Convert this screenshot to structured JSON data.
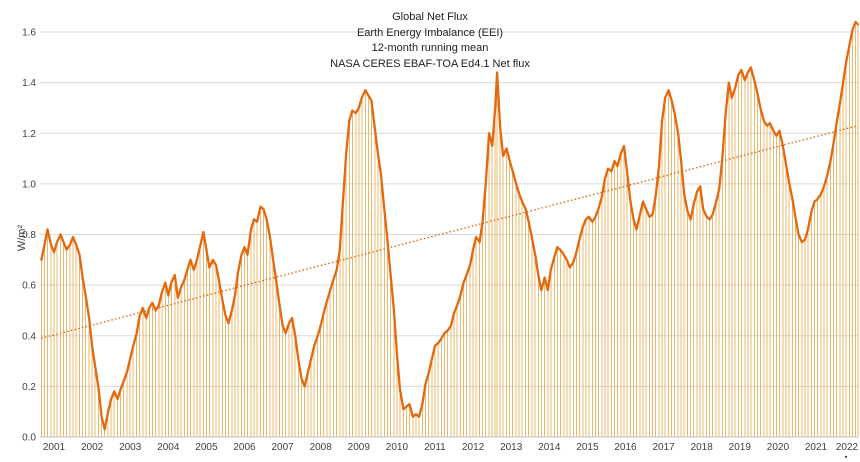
{
  "chart": {
    "title_lines": [
      "Global Net Flux",
      "Earth Energy Imbalance (EEI)",
      "12-month running mean",
      "NASA CERES EBAF-TOA Ed4.1 Net flux"
    ],
    "y_axis": {
      "title": "W/m²",
      "tick_labels": [
        "0.0",
        "0.2",
        "0.4",
        "0.6",
        "0.8",
        "1.0",
        "1.2",
        "1.4",
        "1.6"
      ]
    },
    "x_axis": {
      "tick_labels": [
        "2001",
        "2002",
        "2003",
        "2004",
        "2005",
        "2006",
        "2007",
        "2008",
        "2009",
        "2010",
        "2011",
        "2012",
        "2013",
        "2014",
        "2015",
        "2016",
        "2017",
        "2018",
        "2019",
        "2020",
        "2021",
        "2022"
      ],
      "end_marker": "▪"
    },
    "colors": {
      "line": "#E2690F",
      "drop_lines": "#E7AC55",
      "trend_line": "#DC6B12",
      "gridline": "#D9D9D9",
      "axis_line": "#BFBFBF",
      "tick_text": "#3f3f3f",
      "title_text": "#1f1f1f",
      "marker": "#1a1a1a"
    }
  },
  "chart_data": {
    "type": "line",
    "title": "Global Net Flux — Earth Energy Imbalance (EEI), 12-month running mean, NASA CERES EBAF-TOA Ed4.1 Net flux",
    "xlabel": "",
    "ylabel": "W/m²",
    "ylim": [
      0,
      1.6
    ],
    "ytick_step": 0.2,
    "xlim": [
      2000.55,
      2022.25
    ],
    "grid": "horizontal",
    "legend": "none",
    "series_name": "12-month running mean net flux (W/m²)",
    "points": [
      [
        2000.67,
        0.7
      ],
      [
        2000.75,
        0.76
      ],
      [
        2000.83,
        0.82
      ],
      [
        2000.92,
        0.76
      ],
      [
        2001.0,
        0.73
      ],
      [
        2001.08,
        0.77
      ],
      [
        2001.17,
        0.8
      ],
      [
        2001.25,
        0.77
      ],
      [
        2001.33,
        0.74
      ],
      [
        2001.42,
        0.76
      ],
      [
        2001.5,
        0.79
      ],
      [
        2001.58,
        0.76
      ],
      [
        2001.67,
        0.72
      ],
      [
        2001.75,
        0.63
      ],
      [
        2001.83,
        0.56
      ],
      [
        2001.92,
        0.47
      ],
      [
        2002.0,
        0.36
      ],
      [
        2002.08,
        0.28
      ],
      [
        2002.17,
        0.19
      ],
      [
        2002.25,
        0.08
      ],
      [
        2002.33,
        0.03
      ],
      [
        2002.42,
        0.1
      ],
      [
        2002.5,
        0.15
      ],
      [
        2002.58,
        0.18
      ],
      [
        2002.67,
        0.15
      ],
      [
        2002.75,
        0.19
      ],
      [
        2002.83,
        0.22
      ],
      [
        2002.92,
        0.26
      ],
      [
        2003.0,
        0.31
      ],
      [
        2003.08,
        0.36
      ],
      [
        2003.17,
        0.41
      ],
      [
        2003.25,
        0.48
      ],
      [
        2003.33,
        0.51
      ],
      [
        2003.42,
        0.47
      ],
      [
        2003.5,
        0.51
      ],
      [
        2003.58,
        0.53
      ],
      [
        2003.67,
        0.5
      ],
      [
        2003.75,
        0.52
      ],
      [
        2003.83,
        0.57
      ],
      [
        2003.92,
        0.61
      ],
      [
        2004.0,
        0.56
      ],
      [
        2004.08,
        0.61
      ],
      [
        2004.17,
        0.64
      ],
      [
        2004.25,
        0.55
      ],
      [
        2004.33,
        0.59
      ],
      [
        2004.42,
        0.62
      ],
      [
        2004.5,
        0.66
      ],
      [
        2004.58,
        0.7
      ],
      [
        2004.67,
        0.66
      ],
      [
        2004.75,
        0.7
      ],
      [
        2004.83,
        0.75
      ],
      [
        2004.92,
        0.81
      ],
      [
        2005.0,
        0.74
      ],
      [
        2005.08,
        0.67
      ],
      [
        2005.17,
        0.7
      ],
      [
        2005.25,
        0.68
      ],
      [
        2005.33,
        0.62
      ],
      [
        2005.42,
        0.54
      ],
      [
        2005.5,
        0.48
      ],
      [
        2005.58,
        0.45
      ],
      [
        2005.67,
        0.5
      ],
      [
        2005.75,
        0.56
      ],
      [
        2005.83,
        0.65
      ],
      [
        2005.92,
        0.72
      ],
      [
        2006.0,
        0.75
      ],
      [
        2006.08,
        0.72
      ],
      [
        2006.17,
        0.82
      ],
      [
        2006.25,
        0.86
      ],
      [
        2006.33,
        0.85
      ],
      [
        2006.42,
        0.91
      ],
      [
        2006.5,
        0.9
      ],
      [
        2006.58,
        0.86
      ],
      [
        2006.67,
        0.79
      ],
      [
        2006.75,
        0.7
      ],
      [
        2006.83,
        0.62
      ],
      [
        2006.92,
        0.52
      ],
      [
        2007.0,
        0.44
      ],
      [
        2007.08,
        0.41
      ],
      [
        2007.17,
        0.45
      ],
      [
        2007.25,
        0.47
      ],
      [
        2007.33,
        0.4
      ],
      [
        2007.42,
        0.3
      ],
      [
        2007.5,
        0.23
      ],
      [
        2007.58,
        0.2
      ],
      [
        2007.67,
        0.26
      ],
      [
        2007.75,
        0.31
      ],
      [
        2007.83,
        0.36
      ],
      [
        2007.92,
        0.4
      ],
      [
        2008.0,
        0.44
      ],
      [
        2008.08,
        0.49
      ],
      [
        2008.17,
        0.54
      ],
      [
        2008.25,
        0.58
      ],
      [
        2008.33,
        0.62
      ],
      [
        2008.42,
        0.66
      ],
      [
        2008.5,
        0.74
      ],
      [
        2008.58,
        0.92
      ],
      [
        2008.67,
        1.12
      ],
      [
        2008.75,
        1.25
      ],
      [
        2008.83,
        1.29
      ],
      [
        2008.92,
        1.28
      ],
      [
        2009.0,
        1.3
      ],
      [
        2009.08,
        1.34
      ],
      [
        2009.17,
        1.37
      ],
      [
        2009.25,
        1.35
      ],
      [
        2009.33,
        1.33
      ],
      [
        2009.42,
        1.22
      ],
      [
        2009.5,
        1.12
      ],
      [
        2009.58,
        1.04
      ],
      [
        2009.67,
        0.9
      ],
      [
        2009.75,
        0.78
      ],
      [
        2009.83,
        0.65
      ],
      [
        2009.92,
        0.5
      ],
      [
        2010.0,
        0.33
      ],
      [
        2010.08,
        0.19
      ],
      [
        2010.17,
        0.11
      ],
      [
        2010.25,
        0.12
      ],
      [
        2010.33,
        0.13
      ],
      [
        2010.42,
        0.08
      ],
      [
        2010.5,
        0.09
      ],
      [
        2010.58,
        0.08
      ],
      [
        2010.67,
        0.13
      ],
      [
        2010.75,
        0.21
      ],
      [
        2010.83,
        0.25
      ],
      [
        2010.92,
        0.31
      ],
      [
        2011.0,
        0.36
      ],
      [
        2011.08,
        0.37
      ],
      [
        2011.17,
        0.39
      ],
      [
        2011.25,
        0.41
      ],
      [
        2011.33,
        0.42
      ],
      [
        2011.42,
        0.44
      ],
      [
        2011.5,
        0.49
      ],
      [
        2011.58,
        0.52
      ],
      [
        2011.67,
        0.56
      ],
      [
        2011.75,
        0.61
      ],
      [
        2011.83,
        0.64
      ],
      [
        2011.92,
        0.68
      ],
      [
        2012.0,
        0.74
      ],
      [
        2012.08,
        0.79
      ],
      [
        2012.17,
        0.77
      ],
      [
        2012.25,
        0.85
      ],
      [
        2012.33,
        1.0
      ],
      [
        2012.42,
        1.2
      ],
      [
        2012.5,
        1.15
      ],
      [
        2012.58,
        1.3
      ],
      [
        2012.63,
        1.44
      ],
      [
        2012.71,
        1.22
      ],
      [
        2012.79,
        1.11
      ],
      [
        2012.88,
        1.14
      ],
      [
        2012.96,
        1.09
      ],
      [
        2013.04,
        1.05
      ],
      [
        2013.13,
        1.0
      ],
      [
        2013.21,
        0.96
      ],
      [
        2013.29,
        0.93
      ],
      [
        2013.38,
        0.9
      ],
      [
        2013.46,
        0.85
      ],
      [
        2013.54,
        0.79
      ],
      [
        2013.63,
        0.72
      ],
      [
        2013.71,
        0.64
      ],
      [
        2013.79,
        0.58
      ],
      [
        2013.88,
        0.63
      ],
      [
        2013.96,
        0.58
      ],
      [
        2014.04,
        0.66
      ],
      [
        2014.13,
        0.71
      ],
      [
        2014.21,
        0.75
      ],
      [
        2014.29,
        0.74
      ],
      [
        2014.38,
        0.72
      ],
      [
        2014.46,
        0.7
      ],
      [
        2014.54,
        0.67
      ],
      [
        2014.63,
        0.69
      ],
      [
        2014.71,
        0.73
      ],
      [
        2014.79,
        0.78
      ],
      [
        2014.88,
        0.83
      ],
      [
        2014.96,
        0.86
      ],
      [
        2015.04,
        0.87
      ],
      [
        2015.13,
        0.85
      ],
      [
        2015.21,
        0.87
      ],
      [
        2015.29,
        0.9
      ],
      [
        2015.38,
        0.95
      ],
      [
        2015.46,
        1.02
      ],
      [
        2015.54,
        1.06
      ],
      [
        2015.63,
        1.05
      ],
      [
        2015.71,
        1.09
      ],
      [
        2015.79,
        1.07
      ],
      [
        2015.88,
        1.12
      ],
      [
        2015.96,
        1.15
      ],
      [
        2016.04,
        1.05
      ],
      [
        2016.13,
        0.93
      ],
      [
        2016.21,
        0.86
      ],
      [
        2016.29,
        0.82
      ],
      [
        2016.38,
        0.88
      ],
      [
        2016.46,
        0.93
      ],
      [
        2016.54,
        0.9
      ],
      [
        2016.63,
        0.87
      ],
      [
        2016.71,
        0.88
      ],
      [
        2016.79,
        0.95
      ],
      [
        2016.88,
        1.07
      ],
      [
        2016.96,
        1.25
      ],
      [
        2017.04,
        1.34
      ],
      [
        2017.13,
        1.37
      ],
      [
        2017.21,
        1.33
      ],
      [
        2017.29,
        1.28
      ],
      [
        2017.38,
        1.2
      ],
      [
        2017.46,
        1.09
      ],
      [
        2017.54,
        0.96
      ],
      [
        2017.63,
        0.89
      ],
      [
        2017.71,
        0.86
      ],
      [
        2017.79,
        0.92
      ],
      [
        2017.88,
        0.97
      ],
      [
        2017.96,
        0.99
      ],
      [
        2018.04,
        0.9
      ],
      [
        2018.13,
        0.87
      ],
      [
        2018.21,
        0.86
      ],
      [
        2018.29,
        0.88
      ],
      [
        2018.38,
        0.93
      ],
      [
        2018.46,
        0.98
      ],
      [
        2018.54,
        1.1
      ],
      [
        2018.63,
        1.28
      ],
      [
        2018.71,
        1.4
      ],
      [
        2018.79,
        1.34
      ],
      [
        2018.88,
        1.38
      ],
      [
        2018.96,
        1.43
      ],
      [
        2019.04,
        1.45
      ],
      [
        2019.13,
        1.41
      ],
      [
        2019.21,
        1.44
      ],
      [
        2019.29,
        1.46
      ],
      [
        2019.38,
        1.41
      ],
      [
        2019.46,
        1.36
      ],
      [
        2019.54,
        1.3
      ],
      [
        2019.63,
        1.25
      ],
      [
        2019.71,
        1.23
      ],
      [
        2019.79,
        1.24
      ],
      [
        2019.88,
        1.21
      ],
      [
        2019.96,
        1.19
      ],
      [
        2020.04,
        1.21
      ],
      [
        2020.13,
        1.15
      ],
      [
        2020.21,
        1.08
      ],
      [
        2020.29,
        1.01
      ],
      [
        2020.38,
        0.94
      ],
      [
        2020.46,
        0.87
      ],
      [
        2020.54,
        0.8
      ],
      [
        2020.63,
        0.77
      ],
      [
        2020.71,
        0.78
      ],
      [
        2020.79,
        0.82
      ],
      [
        2020.88,
        0.89
      ],
      [
        2020.96,
        0.93
      ],
      [
        2021.04,
        0.94
      ],
      [
        2021.13,
        0.96
      ],
      [
        2021.21,
        0.99
      ],
      [
        2021.29,
        1.03
      ],
      [
        2021.38,
        1.09
      ],
      [
        2021.46,
        1.16
      ],
      [
        2021.54,
        1.24
      ],
      [
        2021.63,
        1.32
      ],
      [
        2021.71,
        1.4
      ],
      [
        2021.79,
        1.48
      ],
      [
        2021.88,
        1.55
      ],
      [
        2021.96,
        1.61
      ],
      [
        2022.04,
        1.64
      ],
      [
        2022.1,
        1.63
      ]
    ],
    "trendline": {
      "style": "dotted",
      "start": [
        2000.67,
        0.39
      ],
      "end": [
        2022.1,
        1.23
      ]
    }
  }
}
